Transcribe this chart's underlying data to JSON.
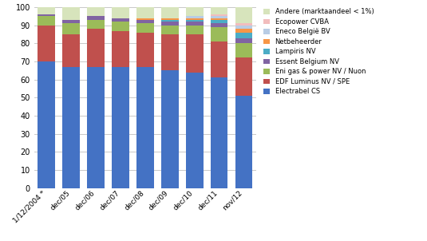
{
  "categories": [
    "1/12/2004 *",
    "dec/05",
    "dec/06",
    "dec/07",
    "dec/08",
    "dec/09",
    "dec/10",
    "dec/11",
    "nov/12"
  ],
  "series": [
    {
      "label": "Electrabel CS",
      "color": "#4472C4",
      "values": [
        70,
        67,
        67,
        67,
        67,
        65,
        64,
        61,
        51
      ]
    },
    {
      "label": "EDF Luminus NV / SPE",
      "color": "#C0504D",
      "values": [
        20,
        18,
        21,
        20,
        19,
        20,
        21,
        20,
        21
      ]
    },
    {
      "label": "Eni gas & power NV / Nuon",
      "color": "#9BBB59",
      "values": [
        5,
        6,
        5,
        5,
        5,
        5,
        5,
        8,
        8
      ]
    },
    {
      "label": "Essent Belgium NV",
      "color": "#8064A2",
      "values": [
        1,
        2,
        2,
        2,
        2,
        2,
        2,
        2,
        3
      ]
    },
    {
      "label": "Lampiris NV",
      "color": "#4BACC6",
      "values": [
        0,
        0,
        0,
        0,
        0,
        1,
        1,
        2,
        3
      ]
    },
    {
      "label": "Netbeheerder",
      "color": "#F79646",
      "values": [
        0,
        0,
        0,
        0,
        1,
        1,
        1,
        1,
        2
      ]
    },
    {
      "label": "Eneco België BV",
      "color": "#B8CCE4",
      "values": [
        0,
        0,
        0,
        0,
        0,
        0,
        1,
        1,
        2
      ]
    },
    {
      "label": "Ecopower CVBA",
      "color": "#F2BDBD",
      "values": [
        0,
        0,
        0,
        0,
        0,
        0,
        0,
        1,
        1
      ]
    },
    {
      "label": "Andere (marktaandeel < 1%)",
      "color": "#D7E4BC",
      "values": [
        4,
        7,
        5,
        6,
        6,
        6,
        5,
        4,
        9
      ]
    }
  ],
  "ylim": [
    0,
    100
  ],
  "yticks": [
    0,
    10,
    20,
    30,
    40,
    50,
    60,
    70,
    80,
    90,
    100
  ],
  "background_color": "#FFFFFF",
  "grid_color": "#BFBFBF",
  "figsize": [
    5.35,
    3.02
  ],
  "dpi": 100
}
